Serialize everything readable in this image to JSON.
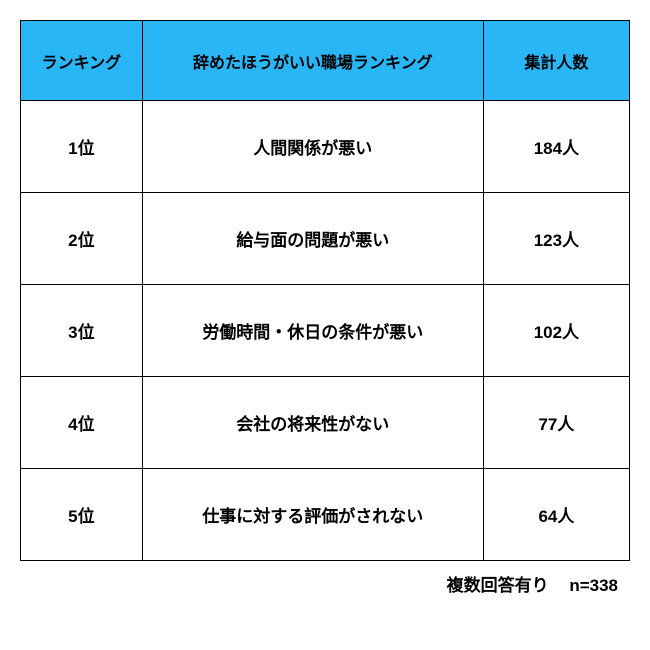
{
  "table": {
    "header_bg": "#29b6f6",
    "border_color": "#000000",
    "columns": [
      {
        "label": "ランキング",
        "class": "col-rank"
      },
      {
        "label": "辞めたほうがいい職場ランキング",
        "class": "col-desc"
      },
      {
        "label": "集計人数",
        "class": "col-count"
      }
    ],
    "rows": [
      {
        "rank": "1位",
        "description": "人間関係が悪い",
        "count": "184人"
      },
      {
        "rank": "2位",
        "description": "給与面の問題が悪い",
        "count": "123人"
      },
      {
        "rank": "3位",
        "description": "労働時間・休日の条件が悪い",
        "count": "102人"
      },
      {
        "rank": "4位",
        "description": "会社の将来性がない",
        "count": "77人"
      },
      {
        "rank": "5位",
        "description": "仕事に対する評価がされない",
        "count": "64人"
      }
    ]
  },
  "footer": {
    "note1": "複数回答有り",
    "note2": "n=338"
  }
}
